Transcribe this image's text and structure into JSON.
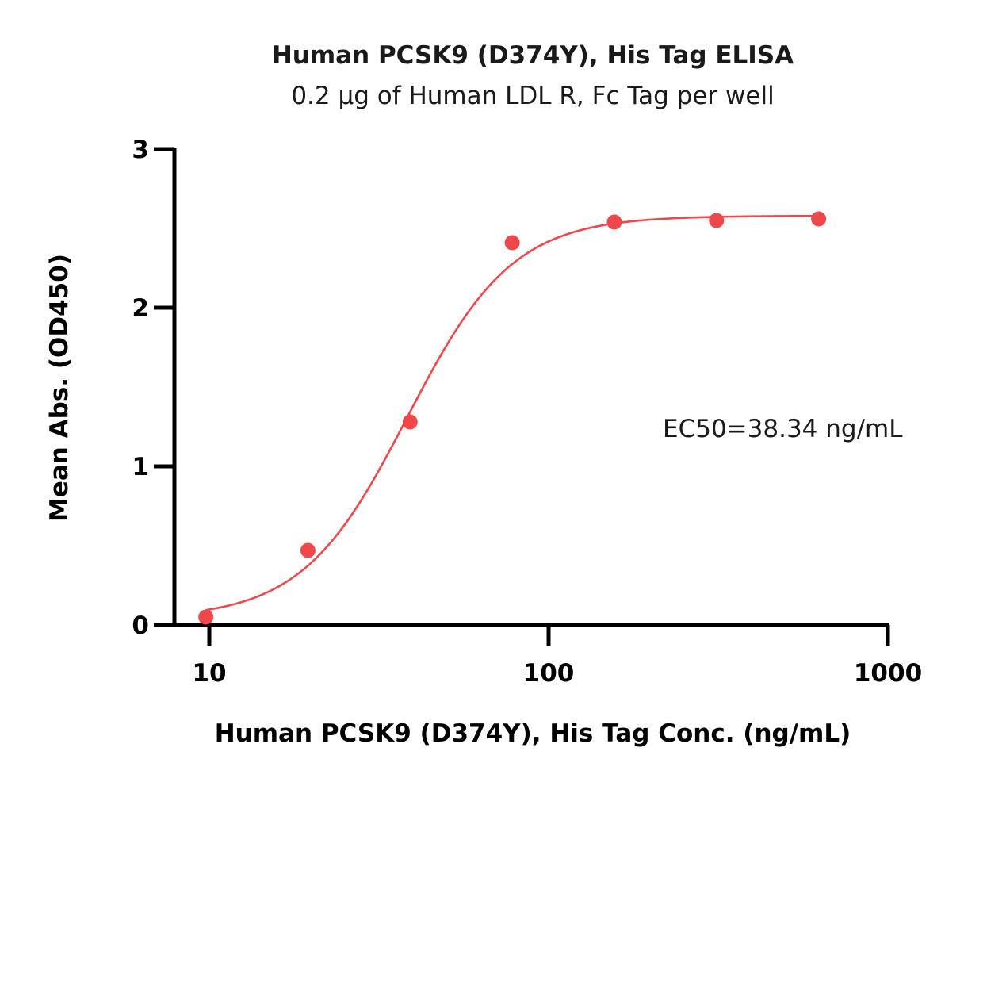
{
  "chart_data": {
    "type": "scatter",
    "title": "Human PCSK9 (D374Y), His Tag ELISA",
    "subtitle": "0.2 μg of Human LDL R, Fc Tag per well",
    "xlabel": "Human PCSK9 (D374Y), His Tag Conc. (ng/mL)",
    "ylabel": "Mean Abs. (OD450)",
    "xscale": "log",
    "xlim": [
      8.5,
      1000
    ],
    "ylim": [
      0,
      3
    ],
    "xticks": [
      10,
      100,
      1000
    ],
    "xtick_labels": [
      "10",
      "100",
      "1000"
    ],
    "yticks": [
      0,
      1,
      2,
      3
    ],
    "ytick_labels": [
      "0",
      "1",
      "2",
      "3"
    ],
    "grid": false,
    "annotation": "EC50=38.34 ng/mL",
    "series": [
      {
        "color": "#f0474a",
        "x": [
          9.77,
          19.53,
          39.06,
          78.13,
          156.25,
          312.5,
          625
        ],
        "y": [
          0.05,
          0.47,
          1.28,
          2.41,
          2.54,
          2.55,
          2.56
        ],
        "fit": {
          "model": "4PL",
          "bottom": 0.04,
          "top": 2.58,
          "ec50": 38.34,
          "hill": 2.8,
          "x_range": [
            9.77,
            625
          ]
        }
      }
    ]
  }
}
